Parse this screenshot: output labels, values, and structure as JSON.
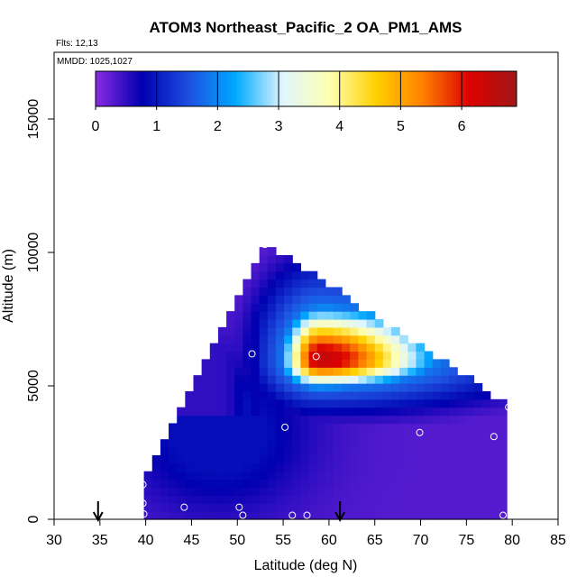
{
  "chart_data": {
    "type": "heatmap",
    "title": "ATOM3 Northeast_Pacific_2 OA_PM1_AMS",
    "flights_label": "Flts: 12,13",
    "date_label": "MMDD: 1025,1027",
    "xlabel": "Latitude (deg N)",
    "ylabel": "Altitude (m)",
    "xlim": [
      30,
      85
    ],
    "ylim": [
      0,
      17500
    ],
    "x_ticks": [
      30,
      35,
      40,
      45,
      50,
      55,
      60,
      65,
      70,
      75,
      80,
      85
    ],
    "y_ticks": [
      0,
      5000,
      10000,
      15000
    ],
    "colorbar": {
      "min": 0,
      "max": 6.9,
      "ticks": [
        0,
        1,
        2,
        3,
        4,
        5,
        6
      ],
      "colors": [
        "#8a2be2",
        "#0000b0",
        "#1e50e0",
        "#00aaff",
        "#e0f5ff",
        "#ffffb0",
        "#ffd000",
        "#ff8000",
        "#dd0000",
        "#a01818"
      ]
    },
    "legend_position": "top",
    "grid": false,
    "field_vertices": [
      [
        39.8,
        0
      ],
      [
        39.8,
        1500
      ],
      [
        53,
        10400
      ],
      [
        79.5,
        4300
      ],
      [
        79.5,
        0
      ]
    ],
    "field_features": [
      {
        "name": "low-background",
        "lat": 68,
        "alt": 1500,
        "value": 0.3
      },
      {
        "name": "dark-band",
        "lat": 50,
        "alt": 3000,
        "value": 0.9
      },
      {
        "name": "max",
        "lat": 59,
        "alt": 6000,
        "value": 6.5
      }
    ],
    "sample_points": [
      [
        39.7,
        1300
      ],
      [
        39.7,
        600
      ],
      [
        39.8,
        200
      ],
      [
        44.2,
        450
      ],
      [
        50.2,
        450
      ],
      [
        50.6,
        150
      ],
      [
        51.6,
        6200
      ],
      [
        53.0,
        10300
      ],
      [
        55.2,
        3450
      ],
      [
        56.0,
        150
      ],
      [
        57.6,
        150
      ],
      [
        58.6,
        6100
      ],
      [
        69.9,
        3250
      ],
      [
        78.0,
        3100
      ],
      [
        79.6,
        4200
      ],
      [
        79.0,
        150
      ]
    ],
    "arrows_lat": [
      34.8,
      61.2
    ]
  }
}
